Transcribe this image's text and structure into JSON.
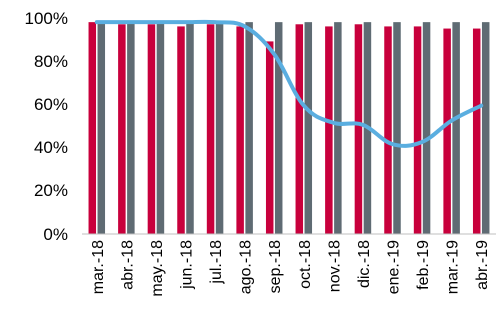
{
  "chart_data": {
    "type": "bar",
    "title": "",
    "xlabel": "",
    "ylabel": "",
    "ylim": [
      0,
      100
    ],
    "yticks": [
      "0%",
      "20%",
      "40%",
      "60%",
      "80%",
      "100%"
    ],
    "categories": [
      "mar.-18",
      "abr.-18",
      "may.-18",
      "jun.-18",
      "jul.-18",
      "ago.-18",
      "sep.-18",
      "oct.-18",
      "nov.-18",
      "dic.-18",
      "ene.-19",
      "feb.-19",
      "mar.-19",
      "abr.-19"
    ],
    "series": [
      {
        "type": "bar",
        "color": "#c8003c",
        "values": [
          99,
          98,
          98,
          97,
          98,
          97,
          90,
          98,
          97,
          98,
          97,
          97,
          96,
          96
        ]
      },
      {
        "type": "bar",
        "color": "#5f6b73",
        "values": [
          99,
          99,
          99,
          99,
          99,
          99,
          99,
          99,
          99,
          99,
          99,
          99,
          99,
          99
        ]
      },
      {
        "type": "line",
        "color": "#5aaee0",
        "values": [
          99,
          99,
          99,
          99,
          99,
          97,
          84,
          60,
          52,
          51,
          42,
          43,
          53,
          60
        ]
      }
    ],
    "grid": false,
    "legend": "none"
  }
}
